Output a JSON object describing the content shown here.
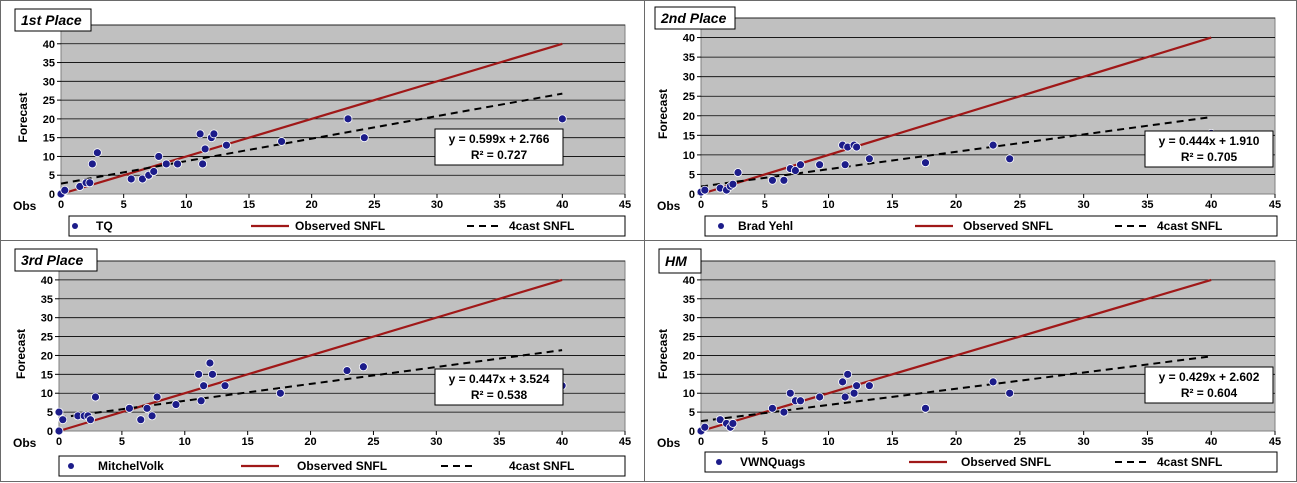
{
  "chart_data": [
    {
      "type": "scatter",
      "title": "1st Place",
      "xlabel": "Obs",
      "ylabel": "Forecast",
      "xlim": [
        0,
        45
      ],
      "ylim": [
        0,
        45
      ],
      "xticks": [
        0,
        5,
        10,
        15,
        20,
        25,
        30,
        35,
        40,
        45
      ],
      "yticks": [
        0,
        5,
        10,
        15,
        20,
        25,
        30,
        35,
        40,
        45
      ],
      "grid": true,
      "legend_position": "bottom",
      "legend": [
        "TQ",
        "Observed SNFL",
        "4cast SNFL"
      ],
      "series": [
        {
          "name": "TQ",
          "kind": "points",
          "x": [
            0,
            0.3,
            1.5,
            2,
            2.3,
            2.5,
            2.9,
            5.6,
            6.5,
            7,
            7.4,
            7.8,
            8.4,
            9.3,
            11.1,
            11.3,
            11.5,
            12,
            12.2,
            13.2,
            17.6,
            22.9,
            24.2,
            40
          ],
          "y": [
            0,
            1,
            2,
            3,
            3,
            8,
            11,
            4,
            4,
            5,
            6,
            10,
            8,
            8,
            16,
            8,
            12,
            15,
            16,
            13,
            14,
            20,
            15,
            20
          ]
        },
        {
          "name": "Observed SNFL",
          "kind": "line",
          "color": "#a01818",
          "x": [
            0,
            40
          ],
          "y": [
            0,
            40
          ]
        },
        {
          "name": "4cast SNFL",
          "kind": "dashed",
          "color": "#000000",
          "x": [
            0,
            40
          ],
          "y": [
            2.766,
            26.726
          ]
        }
      ],
      "equation": "y = 0.599x + 2.766",
      "r2": "R² = 0.727"
    },
    {
      "type": "scatter",
      "title": "2nd Place",
      "xlabel": "Obs",
      "ylabel": "Forecast",
      "xlim": [
        0,
        45
      ],
      "ylim": [
        0,
        45
      ],
      "xticks": [
        0,
        5,
        10,
        15,
        20,
        25,
        30,
        35,
        40,
        45
      ],
      "yticks": [
        0,
        5,
        10,
        15,
        20,
        25,
        30,
        35,
        40,
        45
      ],
      "grid": true,
      "legend_position": "bottom",
      "legend": [
        "Brad Yehl",
        "Observed SNFL",
        "4cast SNFL"
      ],
      "series": [
        {
          "name": "Brad Yehl",
          "kind": "points",
          "x": [
            0,
            0.3,
            1.5,
            2,
            2.3,
            2.5,
            2.9,
            5.6,
            6.5,
            7,
            7.4,
            7.8,
            9.3,
            11.1,
            11.3,
            11.5,
            12,
            12.2,
            13.2,
            17.6,
            22.9,
            24.2,
            40
          ],
          "y": [
            0.5,
            1,
            1.5,
            1,
            2,
            2.5,
            5.5,
            3.5,
            3.5,
            6.5,
            6,
            7.5,
            7.5,
            12.5,
            7.5,
            12,
            12.5,
            12,
            9,
            8,
            12.5,
            9,
            15.5
          ]
        },
        {
          "name": "Observed SNFL",
          "kind": "line",
          "color": "#a01818",
          "x": [
            0,
            40
          ],
          "y": [
            0,
            40
          ]
        },
        {
          "name": "4cast SNFL",
          "kind": "dashed",
          "color": "#000000",
          "x": [
            0,
            40
          ],
          "y": [
            1.91,
            19.67
          ]
        }
      ],
      "equation": "y = 0.444x + 1.910",
      "r2": "R² = 0.705"
    },
    {
      "type": "scatter",
      "title": "3rd Place",
      "xlabel": "Obs",
      "ylabel": "Forecast",
      "xlim": [
        0,
        45
      ],
      "ylim": [
        0,
        45
      ],
      "xticks": [
        0,
        5,
        10,
        15,
        20,
        25,
        30,
        35,
        40,
        45
      ],
      "yticks": [
        0,
        5,
        10,
        15,
        20,
        25,
        30,
        35,
        40,
        45
      ],
      "grid": true,
      "legend_position": "bottom",
      "legend": [
        "MitchelVolk",
        "Observed SNFL",
        "4cast SNFL"
      ],
      "series": [
        {
          "name": "MitchelVolk",
          "kind": "points",
          "x": [
            0,
            0,
            0.3,
            1.5,
            2,
            2.3,
            2.5,
            2.9,
            5.6,
            6.5,
            7,
            7.4,
            7.8,
            9.3,
            11.1,
            11.3,
            11.5,
            12,
            12.2,
            13.2,
            17.6,
            22.9,
            24.2,
            40
          ],
          "y": [
            5,
            0,
            3,
            4,
            4,
            4,
            3,
            9,
            6,
            3,
            6,
            4,
            9,
            7,
            15,
            8,
            12,
            18,
            15,
            12,
            10,
            16,
            17,
            12
          ]
        },
        {
          "name": "Observed SNFL",
          "kind": "line",
          "color": "#a01818",
          "x": [
            0,
            40
          ],
          "y": [
            0,
            40
          ]
        },
        {
          "name": "4cast SNFL",
          "kind": "dashed",
          "color": "#000000",
          "x": [
            0,
            40
          ],
          "y": [
            3.524,
            21.404
          ]
        }
      ],
      "equation": "y = 0.447x + 3.524",
      "r2": "R² = 0.538"
    },
    {
      "type": "scatter",
      "title": "HM",
      "xlabel": "Obs",
      "ylabel": "Forecast",
      "xlim": [
        0,
        45
      ],
      "ylim": [
        0,
        45
      ],
      "xticks": [
        0,
        5,
        10,
        15,
        20,
        25,
        30,
        35,
        40,
        45
      ],
      "yticks": [
        0,
        5,
        10,
        15,
        20,
        25,
        30,
        35,
        40,
        45
      ],
      "grid": true,
      "legend_position": "bottom",
      "legend": [
        "VWNQuags",
        "Observed SNFL",
        "4cast SNFL"
      ],
      "series": [
        {
          "name": "VWNQuags",
          "kind": "points",
          "x": [
            0,
            0.3,
            1.5,
            2,
            2.3,
            2.5,
            5.6,
            6.5,
            7,
            7.4,
            7.8,
            9.3,
            11.1,
            11.3,
            11.5,
            12,
            12.2,
            13.2,
            17.6,
            22.9,
            24.2,
            40
          ],
          "y": [
            0,
            1,
            3,
            2,
            1,
            2,
            6,
            5,
            10,
            8,
            8,
            9,
            13,
            9,
            15,
            10,
            12,
            12,
            6,
            13,
            10,
            14
          ]
        },
        {
          "name": "Observed SNFL",
          "kind": "line",
          "color": "#a01818",
          "x": [
            0,
            40
          ],
          "y": [
            0,
            40
          ]
        },
        {
          "name": "4cast SNFL",
          "kind": "dashed",
          "color": "#000000",
          "x": [
            0,
            40
          ],
          "y": [
            2.602,
            19.762
          ]
        }
      ],
      "equation": "y = 0.429x + 2.602",
      "r2": "R² = 0.604"
    }
  ],
  "style": {
    "plot_bg": "#c0c0c0",
    "point_color": "#1c1c8a",
    "observed_color": "#a01818",
    "trend_color": "#000000"
  }
}
